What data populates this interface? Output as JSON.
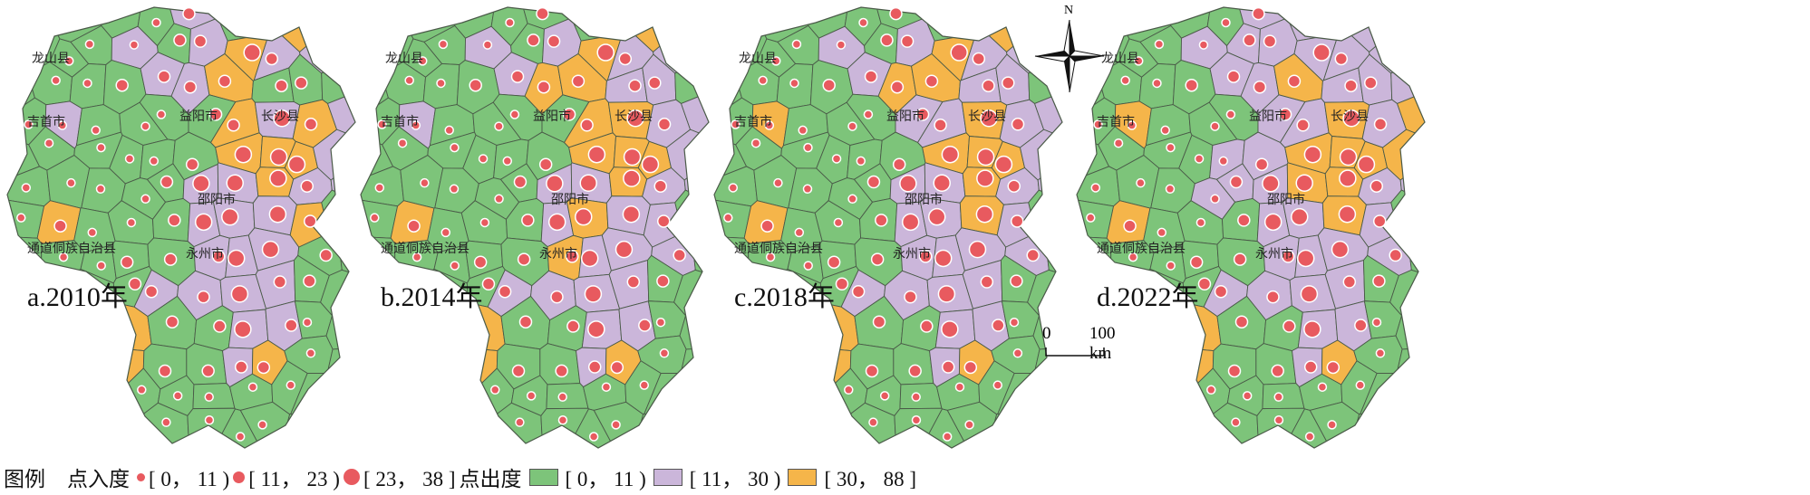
{
  "colors": {
    "low": "#7dc47a",
    "mid": "#cbb6da",
    "high": "#f5b54a",
    "dot": "#e85a5f",
    "border": "#4a5a48"
  },
  "place_labels": [
    "龙山县",
    "吉首市",
    "益阳市",
    "长沙县",
    "邵阳市",
    "通道侗族自治县",
    "永州市"
  ],
  "panels": [
    {
      "title": "a.2010年",
      "out_degree_classes": [
        "gggggpgpog",
        "gggpgpoppg",
        "ggggppoggg",
        "gpggggopop",
        "ggggggooop",
        "gggggppopp",
        "gogggpppog",
        "gggggpppgg",
        "ggggppppgg",
        "gggoggppgg",
        "gggoggpogg",
        "gggggggggg",
        "gggggggggg"
      ],
      "in_degree_classes": [
        "sssssmsmms",
        "ssssmmlmms",
        "sssmmmmmms",
        "sssssmmlmm",
        "sssssmllll",
        "ssssmlllmm",
        "smssmlllmm",
        "sssmmmllmm",
        "sssmmmlmms",
        "sssmmmlmss",
        "ssssmmmmss",
        "ssssssssss",
        "ssssssssss"
      ]
    },
    {
      "title": "b.2014年",
      "out_degree_classes": [
        "gggggggpog",
        "gggpgpoppg",
        "ggggpooppg",
        "gpggggoopp",
        "ggggggooop",
        "gggggppopp",
        "gogggpoppg",
        "gggggopppg",
        "ggggppppgg",
        "gggoggppgg",
        "gggoggpogg",
        "gggggggggg",
        "gggggggggg"
      ],
      "in_degree_classes": [
        "sssssmsmms",
        "ssssmmlmms",
        "sssmmmmmms",
        "sssssmmlmm",
        "sssssmllll",
        "ssssmlllmm",
        "smssmlllmm",
        "sssmmmllmm",
        "sssmmmlmms",
        "sssmmmlmss",
        "ssssmmmmss",
        "ssssssssss",
        "ssssssssss"
      ]
    },
    {
      "title": "c.2018年",
      "out_degree_classes": [
        "gggggggpog",
        "gggpgpoppg",
        "ggggpooppg",
        "gogggppopp",
        "ggggggooop",
        "gggggppopp",
        "gogggppopg",
        "gggggppppg",
        "gpggppppgg",
        "gggoggppgg",
        "gggoggpogg",
        "gggggggggg",
        "gggggggggg"
      ],
      "in_degree_classes": [
        "sssssmsmms",
        "ssssmmlmms",
        "sssmmmmmms",
        "sssssmmlmm",
        "sssssmllll",
        "ssssmlllmm",
        "smssmlllmm",
        "sssmmmllmm",
        "sssmmmlmms",
        "sssmmmlmss",
        "ssssmmmmss",
        "ssssssssss",
        "ssssssssss"
      ]
    },
    {
      "title": "d.2022年",
      "out_degree_classes": [
        "gggggppopg",
        "gggppppppg",
        "ggggppoppp",
        "gogggppopo",
        "ggggppoooo",
        "gggpppoopp",
        "gogggppopg",
        "gggggppppg",
        "ggggppppgg",
        "gggoggppgg",
        "gggoggpogg",
        "gggggggggg",
        "gggggggggg"
      ],
      "in_degree_classes": [
        "sssssmsmms",
        "ssssmmlmms",
        "sssmmmmmms",
        "sssssmmlmm",
        "sssssmllll",
        "ssssmlllmm",
        "smssmlllmm",
        "sssmmmllmm",
        "sssmmmlmms",
        "sssmmmlmss",
        "ssssmmmmss",
        "ssssssssss",
        "ssssssssss"
      ]
    }
  ],
  "north_label": "N",
  "scale": {
    "zero": "0",
    "distance": "100 km"
  },
  "legend": {
    "title": "图例",
    "in_degree_label": "点入度",
    "in_degree_ranges": [
      "[ 0， 11 )",
      "[ 11， 23 )",
      "[ 23， 38 ]"
    ],
    "out_degree_label": "点出度",
    "out_degree_ranges": [
      "[ 0， 11 )",
      "[ 11， 30 )",
      "[ 30， 88 ]"
    ]
  }
}
